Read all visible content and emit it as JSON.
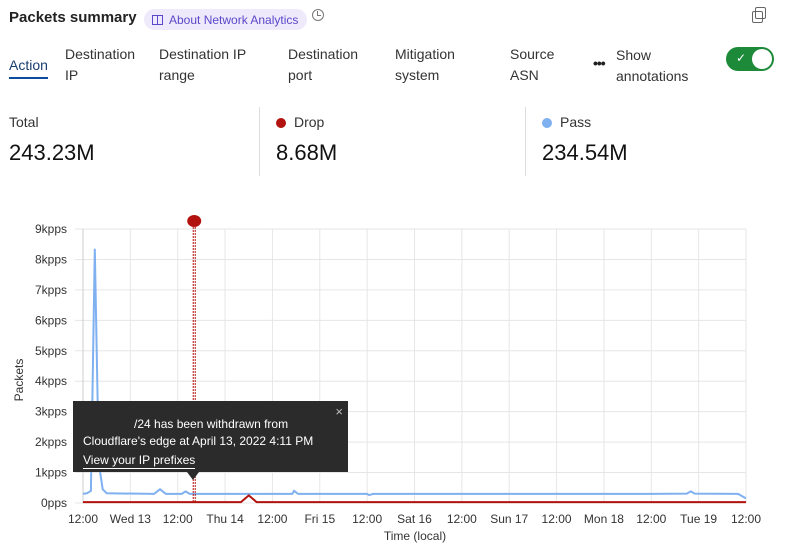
{
  "header": {
    "title": "Packets summary",
    "about_label": "About Network Analytics"
  },
  "tabs": [
    {
      "line1": "Action",
      "line2": ""
    },
    {
      "line1": "Destination",
      "line2": "IP"
    },
    {
      "line1": "Destination IP",
      "line2": "range"
    },
    {
      "line1": "Destination",
      "line2": "port"
    },
    {
      "line1": "Mitigation",
      "line2": "system"
    },
    {
      "line1": "Source",
      "line2": "ASN"
    }
  ],
  "more_label": "•••",
  "annotations_toggle": {
    "line1": "Show",
    "line2": "annotations",
    "on": true,
    "checkmark": "✓"
  },
  "stats": [
    {
      "label": "Total",
      "value": "243.23M"
    },
    {
      "label": "Drop",
      "value": "8.68M",
      "color": "#b3130f"
    },
    {
      "label": "Pass",
      "value": "234.54M",
      "color": "#7fb0f0"
    }
  ],
  "tooltip": {
    "line1": "/24 has been withdrawn from",
    "line2": "Cloudflare's edge at April 13, 2022 4:11 PM",
    "link": "View your IP prefixes",
    "close": "×"
  },
  "chart_data": {
    "type": "line",
    "xlabel": "Time (local)",
    "ylabel": "Packets",
    "ylim": [
      0,
      9000
    ],
    "yticks": [
      "0pps",
      "1kpps",
      "2kpps",
      "3kpps",
      "4kpps",
      "5kpps",
      "6kpps",
      "7kpps",
      "8kpps",
      "9kpps"
    ],
    "xticks": [
      "12:00",
      "Wed 13",
      "12:00",
      "Thu 14",
      "12:00",
      "Fri 15",
      "12:00",
      "Sat 16",
      "12:00",
      "Sun 17",
      "12:00",
      "Mon 18",
      "12:00",
      "Tue 19",
      "12:00"
    ],
    "xrange": [
      "2022-04-12 12:00",
      "2022-04-19 12:00"
    ],
    "grid": true,
    "annotation": {
      "time": "2022-04-13 16:11",
      "color": "#b3130f"
    },
    "series": [
      {
        "name": "Pass",
        "color": "#7fb0f0",
        "points": [
          [
            "2022-04-12 12:00",
            300
          ],
          [
            "2022-04-12 13:00",
            320
          ],
          [
            "2022-04-12 14:00",
            400
          ],
          [
            "2022-04-12 15:00",
            8350
          ],
          [
            "2022-04-12 16:00",
            1300
          ],
          [
            "2022-04-12 17:00",
            450
          ],
          [
            "2022-04-12 18:00",
            320
          ],
          [
            "2022-04-13 06:00",
            300
          ],
          [
            "2022-04-13 07:30",
            450
          ],
          [
            "2022-04-13 09:00",
            300
          ],
          [
            "2022-04-13 13:00",
            300
          ],
          [
            "2022-04-13 14:00",
            380
          ],
          [
            "2022-04-13 15:00",
            300
          ],
          [
            "2022-04-14 06:00",
            300
          ],
          [
            "2022-04-14 17:00",
            300
          ],
          [
            "2022-04-14 17:30",
            400
          ],
          [
            "2022-04-14 18:30",
            300
          ],
          [
            "2022-04-15 12:00",
            300
          ],
          [
            "2022-04-15 12:30",
            260
          ],
          [
            "2022-04-15 13:30",
            300
          ],
          [
            "2022-04-16 12:00",
            300
          ],
          [
            "2022-04-17 12:00",
            300
          ],
          [
            "2022-04-18 12:00",
            300
          ],
          [
            "2022-04-18 21:00",
            310
          ],
          [
            "2022-04-18 22:00",
            380
          ],
          [
            "2022-04-18 23:00",
            310
          ],
          [
            "2022-04-19 10:00",
            300
          ],
          [
            "2022-04-19 12:00",
            150
          ]
        ]
      },
      {
        "name": "Drop",
        "color": "#b3130f",
        "points": [
          [
            "2022-04-12 12:00",
            30
          ],
          [
            "2022-04-14 04:00",
            30
          ],
          [
            "2022-04-14 06:00",
            250
          ],
          [
            "2022-04-14 08:00",
            30
          ],
          [
            "2022-04-19 12:00",
            30
          ]
        ]
      }
    ]
  }
}
